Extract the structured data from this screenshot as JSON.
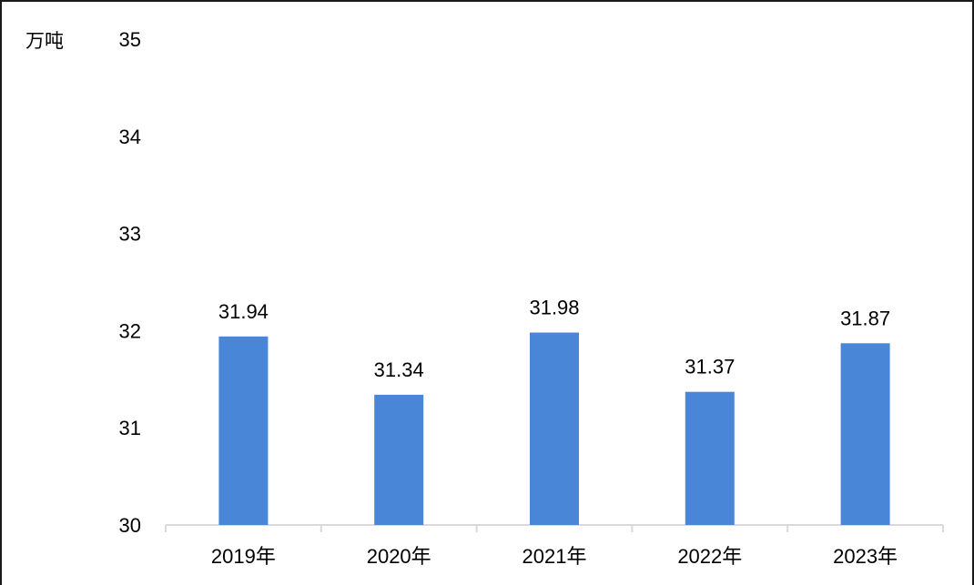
{
  "chart_data": {
    "type": "bar",
    "unit_label": "万吨",
    "categories": [
      "2019年",
      "2020年",
      "2021年",
      "2022年",
      "2023年"
    ],
    "values": [
      31.94,
      31.34,
      31.98,
      31.37,
      31.87
    ],
    "data_labels": [
      "31.94",
      "31.34",
      "31.98",
      "31.37",
      "31.87"
    ],
    "ylim": [
      30,
      35
    ],
    "y_ticks": [
      "30",
      "31",
      "32",
      "33",
      "34",
      "35"
    ],
    "grid": false,
    "legend": "none",
    "bar_color": "#4a86d8",
    "axis_color": "#d9d9d9"
  }
}
